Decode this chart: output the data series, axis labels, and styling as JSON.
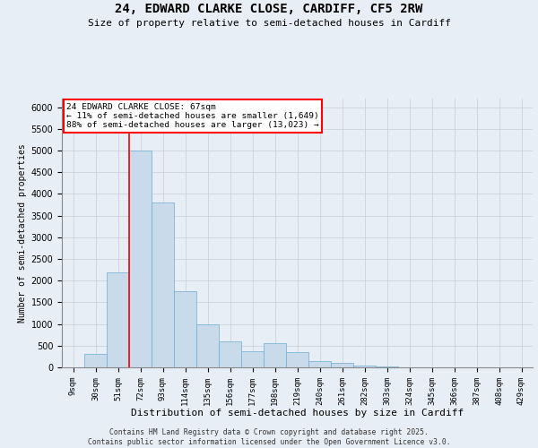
{
  "title_line1": "24, EDWARD CLARKE CLOSE, CARDIFF, CF5 2RW",
  "title_line2": "Size of property relative to semi-detached houses in Cardiff",
  "xlabel": "Distribution of semi-detached houses by size in Cardiff",
  "ylabel": "Number of semi-detached properties",
  "categories": [
    "9sqm",
    "30sqm",
    "51sqm",
    "72sqm",
    "93sqm",
    "114sqm",
    "135sqm",
    "156sqm",
    "177sqm",
    "198sqm",
    "219sqm",
    "240sqm",
    "261sqm",
    "282sqm",
    "303sqm",
    "324sqm",
    "345sqm",
    "366sqm",
    "387sqm",
    "408sqm",
    "429sqm"
  ],
  "values": [
    5,
    300,
    2200,
    5000,
    3800,
    1750,
    1000,
    600,
    380,
    550,
    350,
    150,
    100,
    50,
    30,
    10,
    5,
    5,
    5,
    5,
    3
  ],
  "bar_color": "#c9daea",
  "bar_edge_color": "#6aaed6",
  "property_line_bin": 3,
  "property_sqm": 67,
  "pct_smaller": 11,
  "count_smaller": 1649,
  "pct_larger": 88,
  "count_larger": 13023,
  "annotation_box_color": "#ff0000",
  "annotation_fill": "#ffffff",
  "grid_color": "#c8d4e0",
  "bg_color": "#e8eef5",
  "ylim": [
    0,
    6200
  ],
  "yticks": [
    0,
    500,
    1000,
    1500,
    2000,
    2500,
    3000,
    3500,
    4000,
    4500,
    5000,
    5500,
    6000
  ],
  "footer_line1": "Contains HM Land Registry data © Crown copyright and database right 2025.",
  "footer_line2": "Contains public sector information licensed under the Open Government Licence v3.0."
}
